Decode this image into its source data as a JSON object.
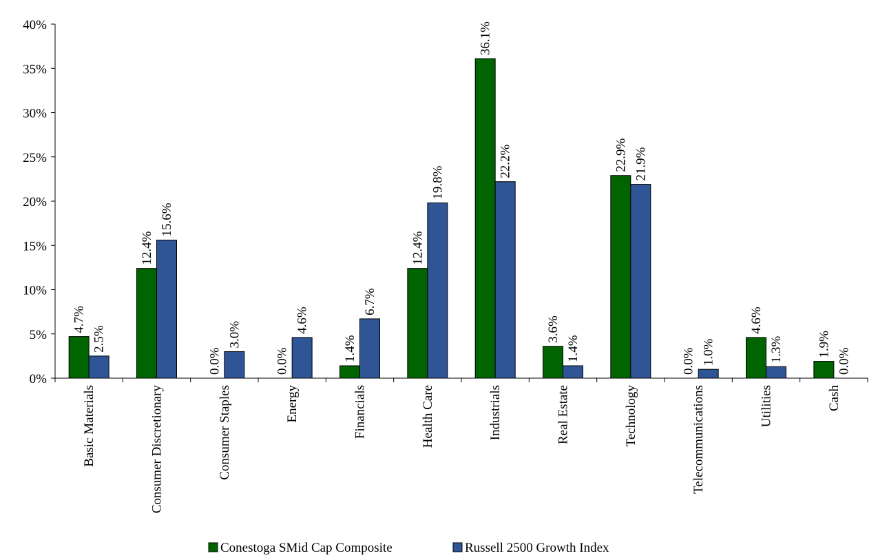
{
  "chart_data": {
    "type": "bar",
    "title": "",
    "xlabel": "",
    "ylabel": "",
    "ylim": [
      0,
      40
    ],
    "yticks": [
      0,
      5,
      10,
      15,
      20,
      25,
      30,
      35,
      40
    ],
    "y_tick_format": "percent",
    "grid": false,
    "legend_position": "bottom",
    "categories": [
      "Basic Materials",
      "Consumer Discretionary",
      "Consumer Staples",
      "Energy",
      "Financials",
      "Health Care",
      "Industrials",
      "Real Estate",
      "Technology",
      "Telecommunications",
      "Utilities",
      "Cash"
    ],
    "series": [
      {
        "name": "Conestoga SMid Cap Composite",
        "color": "#006400",
        "values": [
          4.7,
          12.4,
          0.0,
          0.0,
          1.4,
          12.4,
          36.1,
          3.6,
          22.9,
          0.0,
          4.6,
          1.9
        ],
        "labels": [
          "4.7%",
          "12.4%",
          "0.0%",
          "0.0%",
          "1.4%",
          "12.4%",
          "36.1%",
          "3.6%",
          "22.9%",
          "0.0%",
          "4.6%",
          "1.9%"
        ]
      },
      {
        "name": "Russell 2500 Growth Index",
        "color": "#2F5597",
        "values": [
          2.5,
          15.6,
          3.0,
          4.6,
          6.7,
          19.8,
          22.2,
          1.4,
          21.9,
          1.0,
          1.3,
          0.0
        ],
        "labels": [
          "2.5%",
          "15.6%",
          "3.0%",
          "4.6%",
          "6.7%",
          "19.8%",
          "22.2%",
          "1.4%",
          "21.9%",
          "1.0%",
          "1.3%",
          "0.0%"
        ]
      }
    ]
  }
}
